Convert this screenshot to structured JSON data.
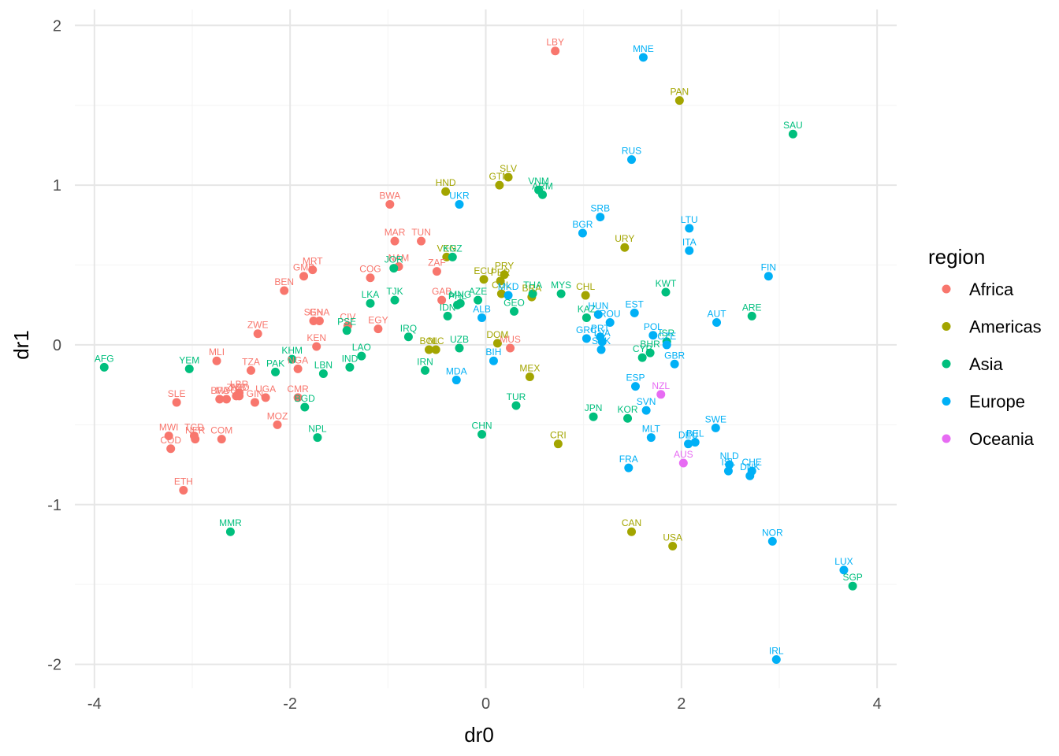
{
  "chart_data": {
    "type": "scatter",
    "xlabel": "dr0",
    "ylabel": "dr1",
    "xlim": [
      -4.2,
      4.2
    ],
    "ylim": [
      -2.15,
      2.1
    ],
    "xticks": [
      -4,
      -2,
      0,
      2,
      4
    ],
    "yticks": [
      -2,
      -1,
      0,
      1,
      2
    ],
    "grid": true,
    "legend_position": "right",
    "legend": {
      "title": "region",
      "entries": [
        {
          "name": "Africa",
          "color": "#F8766D"
        },
        {
          "name": "Americas",
          "color": "#A3A500"
        },
        {
          "name": "Asia",
          "color": "#00BF7D"
        },
        {
          "name": "Europe",
          "color": "#00B0F6"
        },
        {
          "name": "Oceania",
          "color": "#E76BF3"
        }
      ]
    },
    "points": [
      {
        "label": "LBY",
        "region": "Africa",
        "x": 0.71,
        "y": 1.84
      },
      {
        "label": "BWA",
        "region": "Africa",
        "x": -0.98,
        "y": 0.88
      },
      {
        "label": "MAR",
        "region": "Africa",
        "x": -0.93,
        "y": 0.65
      },
      {
        "label": "TUN",
        "region": "Africa",
        "x": -0.66,
        "y": 0.65
      },
      {
        "label": "NAM",
        "region": "Africa",
        "x": -0.89,
        "y": 0.49
      },
      {
        "label": "ZAF",
        "region": "Africa",
        "x": -0.5,
        "y": 0.46
      },
      {
        "label": "MRT",
        "region": "Africa",
        "x": -1.77,
        "y": 0.47
      },
      {
        "label": "GMB",
        "region": "Africa",
        "x": -1.86,
        "y": 0.43
      },
      {
        "label": "COG",
        "region": "Africa",
        "x": -1.18,
        "y": 0.42
      },
      {
        "label": "BEN",
        "region": "Africa",
        "x": -2.06,
        "y": 0.34
      },
      {
        "label": "GAB",
        "region": "Africa",
        "x": -0.45,
        "y": 0.28
      },
      {
        "label": "SEN",
        "region": "Africa",
        "x": -1.76,
        "y": 0.15
      },
      {
        "label": "GHA",
        "region": "Africa",
        "x": -1.7,
        "y": 0.15
      },
      {
        "label": "CIV",
        "region": "Africa",
        "x": -1.41,
        "y": 0.12
      },
      {
        "label": "EGY",
        "region": "Africa",
        "x": -1.1,
        "y": 0.1
      },
      {
        "label": "ZWE",
        "region": "Africa",
        "x": -2.33,
        "y": 0.07
      },
      {
        "label": "KEN",
        "region": "Africa",
        "x": -1.73,
        "y": -0.01
      },
      {
        "label": "MUS",
        "region": "Africa",
        "x": 0.25,
        "y": -0.02
      },
      {
        "label": "MLI",
        "region": "Africa",
        "x": -2.75,
        "y": -0.1
      },
      {
        "label": "TZA",
        "region": "Africa",
        "x": -2.4,
        "y": -0.16
      },
      {
        "label": "NGA",
        "region": "Africa",
        "x": -1.92,
        "y": -0.15
      },
      {
        "label": "LBR",
        "region": "Africa",
        "x": -2.52,
        "y": -0.3
      },
      {
        "label": "CMR",
        "region": "Africa",
        "x": -1.92,
        "y": -0.33
      },
      {
        "label": "ZMB",
        "region": "Africa",
        "x": -2.55,
        "y": -0.32
      },
      {
        "label": "UGA",
        "region": "Africa",
        "x": -2.25,
        "y": -0.33
      },
      {
        "label": "SLE",
        "region": "Africa",
        "x": -3.16,
        "y": -0.36
      },
      {
        "label": "BFA",
        "region": "Africa",
        "x": -2.72,
        "y": -0.34
      },
      {
        "label": "MDG",
        "region": "Africa",
        "x": -2.65,
        "y": -0.34
      },
      {
        "label": "TGO",
        "region": "Africa",
        "x": -2.52,
        "y": -0.32
      },
      {
        "label": "GIN",
        "region": "Africa",
        "x": -2.36,
        "y": -0.36
      },
      {
        "label": "MOZ",
        "region": "Africa",
        "x": -2.13,
        "y": -0.5
      },
      {
        "label": "MWI",
        "region": "Africa",
        "x": -3.24,
        "y": -0.57
      },
      {
        "label": "TCD",
        "region": "Africa",
        "x": -2.98,
        "y": -0.57
      },
      {
        "label": "NER",
        "region": "Africa",
        "x": -2.97,
        "y": -0.59
      },
      {
        "label": "COM",
        "region": "Africa",
        "x": -2.7,
        "y": -0.59
      },
      {
        "label": "COD",
        "region": "Africa",
        "x": -3.22,
        "y": -0.65
      },
      {
        "label": "ETH",
        "region": "Africa",
        "x": -3.09,
        "y": -0.91
      },
      {
        "label": "HND",
        "region": "Americas",
        "x": -0.41,
        "y": 0.96
      },
      {
        "label": "SLV",
        "region": "Americas",
        "x": 0.23,
        "y": 1.05
      },
      {
        "label": "GTM",
        "region": "Americas",
        "x": 0.14,
        "y": 1.0
      },
      {
        "label": "PAN",
        "region": "Americas",
        "x": 1.98,
        "y": 1.53
      },
      {
        "label": "URY",
        "region": "Americas",
        "x": 1.42,
        "y": 0.61
      },
      {
        "label": "VEN",
        "region": "Americas",
        "x": -0.4,
        "y": 0.55
      },
      {
        "label": "PRY",
        "region": "Americas",
        "x": 0.19,
        "y": 0.44
      },
      {
        "label": "ECU",
        "region": "Americas",
        "x": -0.02,
        "y": 0.41
      },
      {
        "label": "PER",
        "region": "Americas",
        "x": 0.15,
        "y": 0.4
      },
      {
        "label": "COL",
        "region": "Americas",
        "x": 0.16,
        "y": 0.32
      },
      {
        "label": "BRA",
        "region": "Americas",
        "x": 0.47,
        "y": 0.3
      },
      {
        "label": "CHL",
        "region": "Americas",
        "x": 1.02,
        "y": 0.31
      },
      {
        "label": "DOM",
        "region": "Americas",
        "x": 0.12,
        "y": 0.01
      },
      {
        "label": "BOL",
        "region": "Americas",
        "x": -0.58,
        "y": -0.03
      },
      {
        "label": "NIC",
        "region": "Americas",
        "x": -0.51,
        "y": -0.03
      },
      {
        "label": "MEX",
        "region": "Americas",
        "x": 0.45,
        "y": -0.2
      },
      {
        "label": "CRI",
        "region": "Americas",
        "x": 0.74,
        "y": -0.62
      },
      {
        "label": "CAN",
        "region": "Americas",
        "x": 1.49,
        "y": -1.17
      },
      {
        "label": "USA",
        "region": "Americas",
        "x": 1.91,
        "y": -1.26
      },
      {
        "label": "SAU",
        "region": "Asia",
        "x": 3.14,
        "y": 1.32
      },
      {
        "label": "VNM",
        "region": "Asia",
        "x": 0.54,
        "y": 0.97
      },
      {
        "label": "ARM",
        "region": "Asia",
        "x": 0.58,
        "y": 0.94
      },
      {
        "label": "KGZ",
        "region": "Asia",
        "x": -0.34,
        "y": 0.55
      },
      {
        "label": "JOR",
        "region": "Asia",
        "x": -0.94,
        "y": 0.48
      },
      {
        "label": "TJK",
        "region": "Asia",
        "x": -0.93,
        "y": 0.28
      },
      {
        "label": "LKA",
        "region": "Asia",
        "x": -1.18,
        "y": 0.26
      },
      {
        "label": "PSE",
        "region": "Asia",
        "x": -1.42,
        "y": 0.09
      },
      {
        "label": "IRQ",
        "region": "Asia",
        "x": -0.79,
        "y": 0.05
      },
      {
        "label": "AZE",
        "region": "Asia",
        "x": -0.08,
        "y": 0.28
      },
      {
        "label": "MNG",
        "region": "Asia",
        "x": -0.26,
        "y": 0.26
      },
      {
        "label": "PHL",
        "region": "Asia",
        "x": -0.29,
        "y": 0.25
      },
      {
        "label": "IDN",
        "region": "Asia",
        "x": -0.39,
        "y": 0.18
      },
      {
        "label": "GEO",
        "region": "Asia",
        "x": 0.29,
        "y": 0.21
      },
      {
        "label": "THA",
        "region": "Asia",
        "x": 0.48,
        "y": 0.32
      },
      {
        "label": "MYS",
        "region": "Asia",
        "x": 0.77,
        "y": 0.32
      },
      {
        "label": "KWT",
        "region": "Asia",
        "x": 1.84,
        "y": 0.33
      },
      {
        "label": "ARE",
        "region": "Asia",
        "x": 2.72,
        "y": 0.18
      },
      {
        "label": "KAZ",
        "region": "Asia",
        "x": 1.03,
        "y": 0.17
      },
      {
        "label": "UZB",
        "region": "Asia",
        "x": -0.27,
        "y": -0.02
      },
      {
        "label": "KHM",
        "region": "Asia",
        "x": -1.98,
        "y": -0.09
      },
      {
        "label": "LAO",
        "region": "Asia",
        "x": -1.27,
        "y": -0.07
      },
      {
        "label": "IND",
        "region": "Asia",
        "x": -1.39,
        "y": -0.14
      },
      {
        "label": "PAK",
        "region": "Asia",
        "x": -2.15,
        "y": -0.17
      },
      {
        "label": "LBN",
        "region": "Asia",
        "x": -1.66,
        "y": -0.18
      },
      {
        "label": "IRN",
        "region": "Asia",
        "x": -0.62,
        "y": -0.16
      },
      {
        "label": "AFG",
        "region": "Asia",
        "x": -3.9,
        "y": -0.14
      },
      {
        "label": "YEM",
        "region": "Asia",
        "x": -3.03,
        "y": -0.15
      },
      {
        "label": "BGD",
        "region": "Asia",
        "x": -1.85,
        "y": -0.39
      },
      {
        "label": "NPL",
        "region": "Asia",
        "x": -1.72,
        "y": -0.58
      },
      {
        "label": "CHN",
        "region": "Asia",
        "x": -0.04,
        "y": -0.56
      },
      {
        "label": "TUR",
        "region": "Asia",
        "x": 0.31,
        "y": -0.38
      },
      {
        "label": "JPN",
        "region": "Asia",
        "x": 1.1,
        "y": -0.45
      },
      {
        "label": "KOR",
        "region": "Asia",
        "x": 1.45,
        "y": -0.46
      },
      {
        "label": "CYP",
        "region": "Asia",
        "x": 1.6,
        "y": -0.08
      },
      {
        "label": "BHR",
        "region": "Asia",
        "x": 1.68,
        "y": -0.05
      },
      {
        "label": "ISR",
        "region": "Asia",
        "x": 1.85,
        "y": 0.02
      },
      {
        "label": "SGP",
        "region": "Asia",
        "x": 3.75,
        "y": -1.51
      },
      {
        "label": "MMR",
        "region": "Asia",
        "x": -2.61,
        "y": -1.17
      },
      {
        "label": "MNE",
        "region": "Europe",
        "x": 1.61,
        "y": 1.8
      },
      {
        "label": "RUS",
        "region": "Europe",
        "x": 1.49,
        "y": 1.16
      },
      {
        "label": "UKR",
        "region": "Europe",
        "x": -0.27,
        "y": 0.88
      },
      {
        "label": "SRB",
        "region": "Europe",
        "x": 1.17,
        "y": 0.8
      },
      {
        "label": "BGR",
        "region": "Europe",
        "x": 0.99,
        "y": 0.7
      },
      {
        "label": "LTU",
        "region": "Europe",
        "x": 2.08,
        "y": 0.73
      },
      {
        "label": "ITA",
        "region": "Europe",
        "x": 2.08,
        "y": 0.59
      },
      {
        "label": "FIN",
        "region": "Europe",
        "x": 2.89,
        "y": 0.43
      },
      {
        "label": "MKD",
        "region": "Europe",
        "x": 0.23,
        "y": 0.31
      },
      {
        "label": "ALB",
        "region": "Europe",
        "x": -0.04,
        "y": 0.17
      },
      {
        "label": "HUN",
        "region": "Europe",
        "x": 1.15,
        "y": 0.19
      },
      {
        "label": "ROU",
        "region": "Europe",
        "x": 1.27,
        "y": 0.14
      },
      {
        "label": "EST",
        "region": "Europe",
        "x": 1.52,
        "y": 0.2
      },
      {
        "label": "AUT",
        "region": "Europe",
        "x": 2.36,
        "y": 0.14
      },
      {
        "label": "POL",
        "region": "Europe",
        "x": 1.71,
        "y": 0.06
      },
      {
        "label": "PRT",
        "region": "Europe",
        "x": 1.17,
        "y": 0.05
      },
      {
        "label": "GRC",
        "region": "Europe",
        "x": 1.03,
        "y": 0.04
      },
      {
        "label": "LVA",
        "region": "Europe",
        "x": 1.19,
        "y": 0.02
      },
      {
        "label": "SVK",
        "region": "Europe",
        "x": 1.18,
        "y": -0.03
      },
      {
        "label": "CZE",
        "region": "Europe",
        "x": 1.85,
        "y": 0.0
      },
      {
        "label": "BIH",
        "region": "Europe",
        "x": 0.08,
        "y": -0.1
      },
      {
        "label": "MDA",
        "region": "Europe",
        "x": -0.3,
        "y": -0.22
      },
      {
        "label": "GBR",
        "region": "Europe",
        "x": 1.93,
        "y": -0.12
      },
      {
        "label": "ESP",
        "region": "Europe",
        "x": 1.53,
        "y": -0.26
      },
      {
        "label": "SVN",
        "region": "Europe",
        "x": 1.64,
        "y": -0.41
      },
      {
        "label": "MLT",
        "region": "Europe",
        "x": 1.69,
        "y": -0.58
      },
      {
        "label": "SWE",
        "region": "Europe",
        "x": 2.35,
        "y": -0.52
      },
      {
        "label": "DEU",
        "region": "Europe",
        "x": 2.07,
        "y": -0.62
      },
      {
        "label": "BEL",
        "region": "Europe",
        "x": 2.14,
        "y": -0.61
      },
      {
        "label": "FRA",
        "region": "Europe",
        "x": 1.46,
        "y": -0.77
      },
      {
        "label": "NLD",
        "region": "Europe",
        "x": 2.49,
        "y": -0.75
      },
      {
        "label": "ISL",
        "region": "Europe",
        "x": 2.48,
        "y": -0.79
      },
      {
        "label": "CHE",
        "region": "Europe",
        "x": 2.72,
        "y": -0.79
      },
      {
        "label": "DNK",
        "region": "Europe",
        "x": 2.7,
        "y": -0.82
      },
      {
        "label": "NOR",
        "region": "Europe",
        "x": 2.93,
        "y": -1.23
      },
      {
        "label": "LUX",
        "region": "Europe",
        "x": 3.66,
        "y": -1.41
      },
      {
        "label": "IRL",
        "region": "Europe",
        "x": 2.97,
        "y": -1.97
      },
      {
        "label": "NZL",
        "region": "Oceania",
        "x": 1.79,
        "y": -0.31
      },
      {
        "label": "AUS",
        "region": "Oceania",
        "x": 2.02,
        "y": -0.74
      }
    ]
  }
}
